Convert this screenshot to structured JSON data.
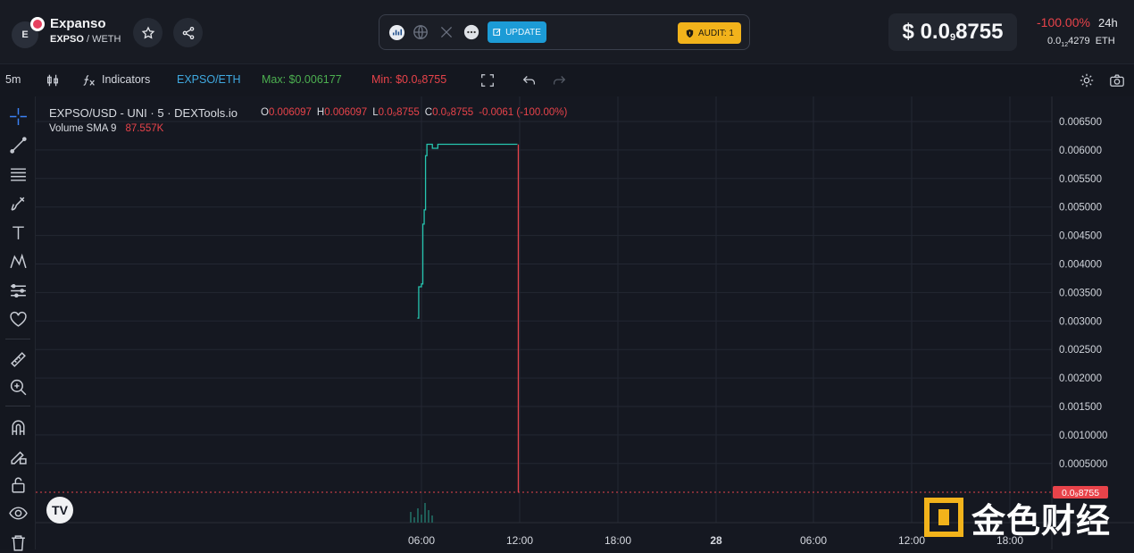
{
  "header": {
    "avatar_letter": "E",
    "token_name": "Expanso",
    "pair_base": "EXPSO",
    "pair_quote": "WETH",
    "update_label": "UPDATE",
    "audit_label": "AUDIT: 1",
    "price_prefix": "$ 0.0",
    "price_sub": "9",
    "price_rest": "8755",
    "change": "-100.00%",
    "change_period": "24h",
    "eth_prefix": "0.0",
    "eth_sub": "12",
    "eth_rest": "4279",
    "eth_unit": "ETH",
    "colors": {
      "negative": "#e8434a",
      "update": "#1c9bd6",
      "audit": "#f2b31b"
    }
  },
  "toolbar": {
    "interval": "5m",
    "indicators_label": "Indicators",
    "pair_label": "EXPSO/ETH",
    "max_label": "Max: $0.006177",
    "min_label": "Min: $0.0₉8755"
  },
  "chart": {
    "legend_title": "EXPSO/USD - UNI · 5 · DEXTools.io",
    "ohlc": {
      "o_key": "O",
      "o_val": "0.006097",
      "h_key": "H",
      "h_val": "0.006097",
      "l_key": "L",
      "l_val": "0.0₉8755",
      "c_key": "C",
      "c_val": "0.0₉8755",
      "change": "-0.0061 (-100.00%)"
    },
    "volume_label": "Volume SMA 9",
    "volume_value": "87.557K",
    "last_price_label": "0.0₉8755",
    "tv_logo": "TV"
  },
  "chart_data": {
    "type": "line",
    "title": "EXPSO/USD - UNI · 5 · DEXTools.io",
    "y_ticks": [
      "0.006500",
      "0.006000",
      "0.005500",
      "0.005000",
      "0.004500",
      "0.004000",
      "0.003500",
      "0.003000",
      "0.002500",
      "0.002000",
      "0.001500",
      "0.0010000",
      "0.0005000"
    ],
    "y_tick_values": [
      0.0065,
      0.006,
      0.0055,
      0.005,
      0.0045,
      0.004,
      0.0035,
      0.003,
      0.0025,
      0.002,
      0.0015,
      0.001,
      0.0005
    ],
    "ylim": [
      0,
      0.0068
    ],
    "x_ticks": [
      "06:00",
      "12:00",
      "18:00",
      "28",
      "06:00",
      "12:00",
      "18:00"
    ],
    "series": [
      {
        "values": [
          {
            "t": "05:45",
            "y": 0.00305
          },
          {
            "t": "05:50",
            "y": 0.0036
          },
          {
            "t": "06:00",
            "y": 0.00365
          },
          {
            "t": "06:05",
            "y": 0.0047
          },
          {
            "t": "06:10",
            "y": 0.00495
          },
          {
            "t": "06:15",
            "y": 0.0059
          },
          {
            "t": "06:20",
            "y": 0.0061
          },
          {
            "t": "06:40",
            "y": 0.00603
          },
          {
            "t": "07:00",
            "y": 0.0061
          },
          {
            "t": "11:50",
            "y": 0.006097
          },
          {
            "t": "11:55",
            "y": 0.0
          }
        ]
      }
    ],
    "colors": {
      "up": "#26c6b0",
      "down": "#e8434a",
      "grid": "#232733",
      "background": "#151821"
    },
    "grid": true
  },
  "watermark": {
    "text": "金色财经"
  }
}
